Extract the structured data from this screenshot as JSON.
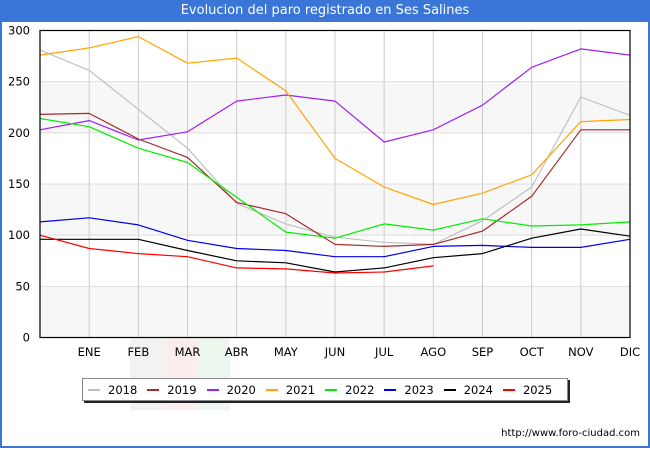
{
  "title": "Evolucion del paro registrado en Ses Salines",
  "footer_url": "http://www.foro-ciudad.com",
  "chart_data": {
    "type": "line",
    "title": "Evolucion del paro registrado en Ses Salines",
    "xlabel": "",
    "ylabel": "",
    "categories": [
      "",
      "ENE",
      "FEB",
      "MAR",
      "ABR",
      "MAY",
      "JUN",
      "JUL",
      "AGO",
      "SEP",
      "OCT",
      "NOV",
      "DIC"
    ],
    "ylim": [
      0,
      300
    ],
    "yticks": [
      0,
      50,
      100,
      150,
      200,
      250,
      300
    ],
    "grid": true,
    "legend_position": "bottom",
    "series": [
      {
        "name": "2018",
        "color": "#c0c0c0",
        "values": [
          281,
          261,
          223,
          185,
          131,
          111,
          98,
          93,
          91,
          114,
          147,
          235,
          217
        ]
      },
      {
        "name": "2019",
        "color": "#a52a2a",
        "values": [
          218,
          219,
          194,
          176,
          132,
          121,
          91,
          89,
          91,
          104,
          138,
          203,
          203
        ]
      },
      {
        "name": "2020",
        "color": "#a020f0",
        "values": [
          203,
          212,
          193,
          201,
          231,
          237,
          231,
          191,
          203,
          227,
          264,
          282,
          276
        ]
      },
      {
        "name": "2021",
        "color": "#ffa500",
        "values": [
          276,
          283,
          294,
          268,
          273,
          241,
          175,
          147,
          130,
          141,
          159,
          211,
          213
        ]
      },
      {
        "name": "2022",
        "color": "#00ee00",
        "values": [
          214,
          206,
          185,
          171,
          137,
          103,
          97,
          111,
          105,
          116,
          109,
          110,
          113
        ]
      },
      {
        "name": "2023",
        "color": "#0000ee",
        "values": [
          113,
          117,
          110,
          95,
          87,
          85,
          79,
          79,
          89,
          90,
          88,
          88,
          96
        ]
      },
      {
        "name": "2024",
        "color": "#000000",
        "values": [
          96,
          96,
          96,
          85,
          75,
          73,
          64,
          68,
          78,
          82,
          97,
          106,
          99
        ]
      },
      {
        "name": "2025",
        "color": "#ff0000",
        "values": [
          100,
          87,
          82,
          79,
          68,
          67,
          63,
          64,
          70,
          null,
          null,
          null,
          null
        ]
      }
    ]
  }
}
